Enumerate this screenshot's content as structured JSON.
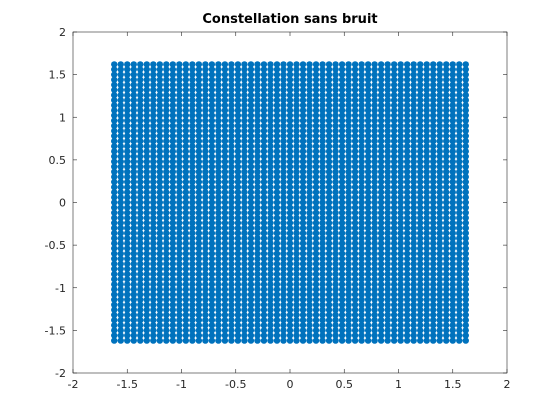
{
  "chart_data": {
    "type": "scatter",
    "title": "Constellation sans bruit",
    "xlabel": "",
    "ylabel": "",
    "xlim": [
      -2,
      2
    ],
    "ylim": [
      -2,
      2
    ],
    "x_ticks": [
      -2,
      -1.5,
      -1,
      -0.5,
      0,
      0.5,
      1,
      1.5,
      2
    ],
    "x_tick_labels": [
      "-2",
      "-1.5",
      "-1",
      "-0.5",
      "0",
      "0.5",
      "1",
      "1.5",
      "2"
    ],
    "y_ticks": [
      -2,
      -1.5,
      -1,
      -0.5,
      0,
      0.5,
      1,
      1.5,
      2
    ],
    "y_tick_labels": [
      "-2",
      "-1.5",
      "-1",
      "-0.5",
      "0",
      "0.5",
      "1",
      "1.5",
      "2"
    ],
    "grid": false,
    "legend": "none",
    "series": [
      {
        "marker_color": "#0072bd",
        "region": {
          "x_min": -1.62,
          "x_max": 1.62,
          "y_min": -1.62,
          "y_max": 1.62,
          "step": 0.06
        }
      }
    ]
  }
}
